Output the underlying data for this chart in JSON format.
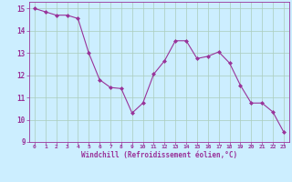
{
  "x": [
    0,
    1,
    2,
    3,
    4,
    5,
    6,
    7,
    8,
    9,
    10,
    11,
    12,
    13,
    14,
    15,
    16,
    17,
    18,
    19,
    20,
    21,
    22,
    23
  ],
  "y": [
    15.0,
    14.85,
    14.7,
    14.7,
    14.55,
    13.0,
    11.8,
    11.45,
    11.4,
    10.3,
    10.75,
    12.05,
    12.65,
    13.55,
    13.55,
    12.75,
    12.85,
    13.05,
    12.55,
    11.55,
    10.75,
    10.75,
    10.35,
    9.45
  ],
  "line_color": "#993399",
  "marker": "D",
  "marker_size": 2.0,
  "bg_color": "#cceeff",
  "grid_color": "#aaccbb",
  "xlabel": "Windchill (Refroidissement éolien,°C)",
  "xlabel_color": "#993399",
  "tick_color": "#993399",
  "ylim": [
    9,
    15.3
  ],
  "xlim": [
    -0.5,
    23.5
  ],
  "yticks": [
    9,
    10,
    11,
    12,
    13,
    14,
    15
  ],
  "xticks": [
    0,
    1,
    2,
    3,
    4,
    5,
    6,
    7,
    8,
    9,
    10,
    11,
    12,
    13,
    14,
    15,
    16,
    17,
    18,
    19,
    20,
    21,
    22,
    23
  ]
}
